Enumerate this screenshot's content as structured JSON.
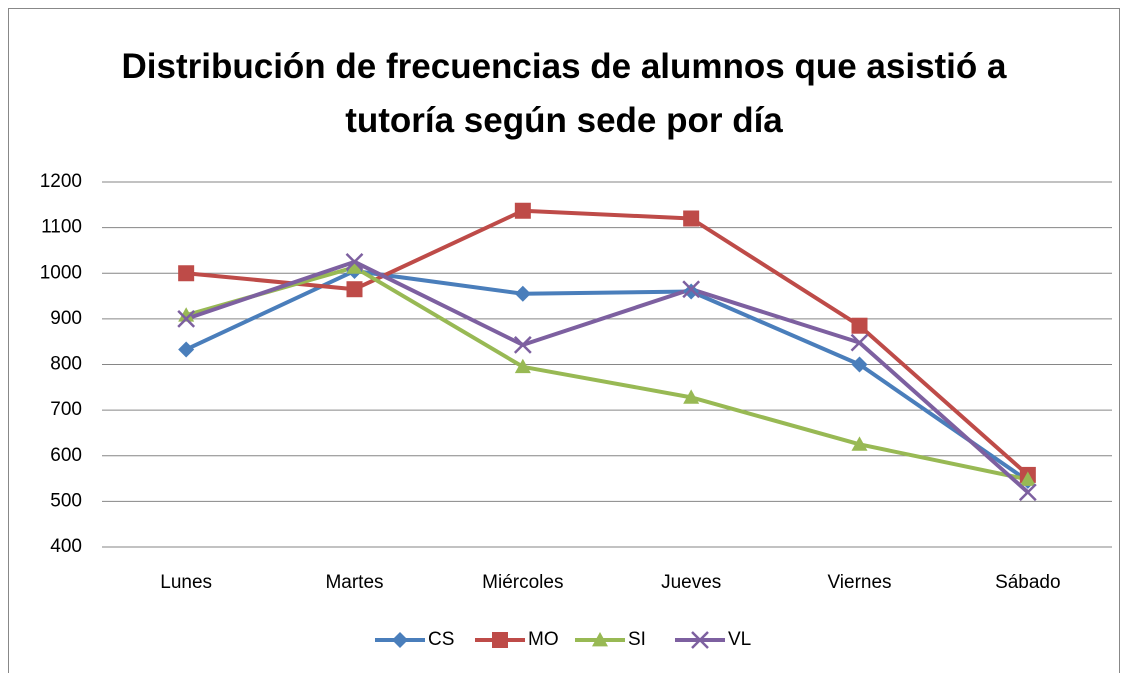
{
  "chart_data": {
    "type": "line",
    "title": "Distribución de frecuencias de alumnos que asistió a tutoría según sede por día",
    "categories": [
      "Lunes",
      "Martes",
      "Miércoles",
      "Jueves",
      "Viernes",
      "Sábado"
    ],
    "series": [
      {
        "name": "CS",
        "color": "#4a7ebb",
        "marker": "diamond",
        "values": [
          833,
          1005,
          955,
          960,
          800,
          545
        ]
      },
      {
        "name": "MO",
        "color": "#be4b48",
        "marker": "square",
        "values": [
          1000,
          965,
          1137,
          1120,
          885,
          558
        ]
      },
      {
        "name": "SI",
        "color": "#98b954",
        "marker": "triangle",
        "values": [
          908,
          1013,
          795,
          728,
          625,
          548
        ]
      },
      {
        "name": "VL",
        "color": "#7d60a0",
        "marker": "x",
        "values": [
          900,
          1025,
          843,
          965,
          848,
          520
        ]
      }
    ],
    "ylim": [
      400,
      1200
    ],
    "yticks": [
      400,
      500,
      600,
      700,
      800,
      900,
      1000,
      1100,
      1200
    ],
    "grid": true,
    "legend": "bottom"
  }
}
